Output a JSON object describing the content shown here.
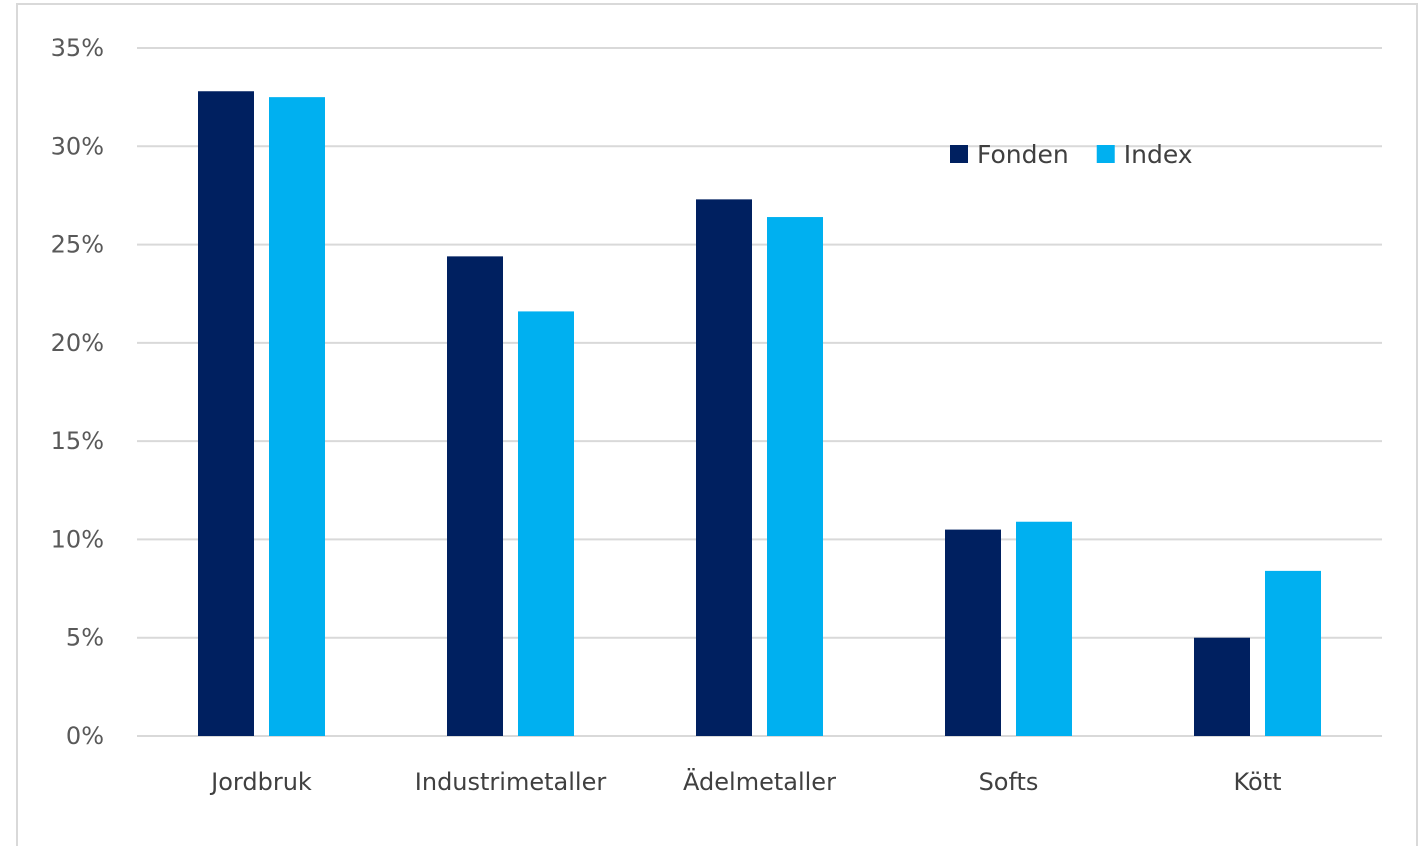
{
  "chart_data": {
    "type": "bar",
    "categories": [
      "Jordbruk",
      "Industrimetaller",
      "Ädelmetaller",
      "Softs",
      "Kött"
    ],
    "series": [
      {
        "name": "Fonden",
        "color": "#002060",
        "values": [
          32.8,
          24.4,
          27.3,
          10.5,
          5.0
        ]
      },
      {
        "name": "Index",
        "color": "#00b0f0",
        "values": [
          32.5,
          21.6,
          26.4,
          10.9,
          8.4
        ]
      }
    ],
    "yticks": [
      "0%",
      "5%",
      "10%",
      "15%",
      "20%",
      "25%",
      "30%",
      "35%"
    ],
    "ylim": [
      0,
      35
    ],
    "ystep": 5,
    "unit": "%",
    "grid": true,
    "legend_position": "top-right",
    "title": "",
    "xlabel": "",
    "ylabel": ""
  }
}
